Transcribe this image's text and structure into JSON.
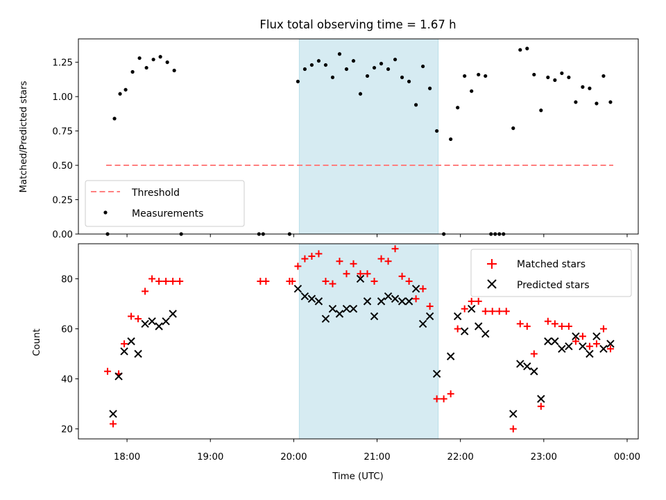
{
  "title": "Flux total observing time = 1.67 h",
  "chart_data": [
    {
      "type": "scatter",
      "ylabel": "Matched/Predicted stars",
      "ylim": [
        0,
        1.42
      ],
      "xlim": [
        "17:25",
        "00:08"
      ],
      "yticks": [
        "0.00",
        "0.25",
        "0.50",
        "0.75",
        "1.00",
        "1.25"
      ],
      "grid": false,
      "legend_position": "lower-left",
      "shaded_span": {
        "start": "20:04",
        "end": "21:44",
        "color": "#add8e6"
      },
      "threshold": {
        "name": "Threshold",
        "value": 0.5,
        "x_start": "17:45",
        "x_end": "23:50",
        "color": "#ff7f7f",
        "style": "dashed"
      },
      "series": [
        {
          "name": "Measurements",
          "color": "#000000",
          "points": [
            [
              "17:46",
              0.0
            ],
            [
              "17:51",
              0.84
            ],
            [
              "17:55",
              1.02
            ],
            [
              "17:59",
              1.05
            ],
            [
              "18:04",
              1.18
            ],
            [
              "18:09",
              1.28
            ],
            [
              "18:14",
              1.21
            ],
            [
              "18:19",
              1.27
            ],
            [
              "18:24",
              1.29
            ],
            [
              "18:29",
              1.25
            ],
            [
              "18:34",
              1.19
            ],
            [
              "18:39",
              0.0
            ],
            [
              "19:35",
              0.0
            ],
            [
              "19:38",
              0.0
            ],
            [
              "19:57",
              0.0
            ],
            [
              "20:03",
              1.11
            ],
            [
              "20:08",
              1.2
            ],
            [
              "20:13",
              1.23
            ],
            [
              "20:18",
              1.26
            ],
            [
              "20:23",
              1.23
            ],
            [
              "20:28",
              1.14
            ],
            [
              "20:33",
              1.31
            ],
            [
              "20:38",
              1.2
            ],
            [
              "20:43",
              1.26
            ],
            [
              "20:48",
              1.02
            ],
            [
              "20:53",
              1.15
            ],
            [
              "20:58",
              1.21
            ],
            [
              "21:03",
              1.24
            ],
            [
              "21:08",
              1.2
            ],
            [
              "21:13",
              1.27
            ],
            [
              "21:18",
              1.14
            ],
            [
              "21:23",
              1.11
            ],
            [
              "21:28",
              0.94
            ],
            [
              "21:33",
              1.22
            ],
            [
              "21:38",
              1.06
            ],
            [
              "21:43",
              0.75
            ],
            [
              "21:48",
              0.0
            ],
            [
              "21:53",
              0.69
            ],
            [
              "21:58",
              0.92
            ],
            [
              "22:03",
              1.15
            ],
            [
              "22:08",
              1.04
            ],
            [
              "22:13",
              1.16
            ],
            [
              "22:18",
              1.15
            ],
            [
              "22:22",
              0.0
            ],
            [
              "22:25",
              0.0
            ],
            [
              "22:28",
              0.0
            ],
            [
              "22:31",
              0.0
            ],
            [
              "22:38",
              0.77
            ],
            [
              "22:43",
              1.34
            ],
            [
              "22:48",
              1.35
            ],
            [
              "22:53",
              1.16
            ],
            [
              "22:58",
              0.9
            ],
            [
              "23:03",
              1.14
            ],
            [
              "23:08",
              1.12
            ],
            [
              "23:13",
              1.17
            ],
            [
              "23:18",
              1.14
            ],
            [
              "23:23",
              0.96
            ],
            [
              "23:28",
              1.07
            ],
            [
              "23:33",
              1.06
            ],
            [
              "23:38",
              0.95
            ],
            [
              "23:43",
              1.15
            ],
            [
              "23:48",
              0.96
            ]
          ]
        }
      ]
    },
    {
      "type": "scatter",
      "xlabel": "Time (UTC)",
      "ylabel": "Count",
      "ylim": [
        16,
        94
      ],
      "xlim": [
        "17:25",
        "00:08"
      ],
      "xticks": [
        "18:00",
        "19:00",
        "20:00",
        "21:00",
        "22:00",
        "23:00",
        "00:00"
      ],
      "yticks": [
        "20",
        "40",
        "60",
        "80"
      ],
      "grid": false,
      "legend_position": "upper-right",
      "shaded_span": {
        "start": "20:04",
        "end": "21:44",
        "color": "#add8e6"
      },
      "series": [
        {
          "name": "Matched stars",
          "color": "#ff0000",
          "marker": "+",
          "points": [
            [
              "17:46",
              43
            ],
            [
              "17:50",
              22
            ],
            [
              "17:54",
              42
            ],
            [
              "17:58",
              54
            ],
            [
              "18:03",
              65
            ],
            [
              "18:08",
              64
            ],
            [
              "18:13",
              75
            ],
            [
              "18:18",
              80
            ],
            [
              "18:23",
              79
            ],
            [
              "18:28",
              79
            ],
            [
              "18:33",
              79
            ],
            [
              "18:38",
              79
            ],
            [
              "19:36",
              79
            ],
            [
              "19:40",
              79
            ],
            [
              "19:57",
              79
            ],
            [
              "19:59",
              79
            ],
            [
              "20:03",
              85
            ],
            [
              "20:08",
              88
            ],
            [
              "20:13",
              89
            ],
            [
              "20:18",
              90
            ],
            [
              "20:23",
              79
            ],
            [
              "20:28",
              78
            ],
            [
              "20:33",
              87
            ],
            [
              "20:38",
              82
            ],
            [
              "20:43",
              86
            ],
            [
              "20:48",
              82
            ],
            [
              "20:53",
              82
            ],
            [
              "20:58",
              79
            ],
            [
              "21:03",
              88
            ],
            [
              "21:08",
              87
            ],
            [
              "21:13",
              92
            ],
            [
              "21:18",
              81
            ],
            [
              "21:23",
              79
            ],
            [
              "21:28",
              72
            ],
            [
              "21:33",
              76
            ],
            [
              "21:38",
              69
            ],
            [
              "21:43",
              32
            ],
            [
              "21:48",
              32
            ],
            [
              "21:53",
              34
            ],
            [
              "21:58",
              60
            ],
            [
              "22:03",
              68
            ],
            [
              "22:08",
              71
            ],
            [
              "22:13",
              71
            ],
            [
              "22:18",
              67
            ],
            [
              "22:23",
              67
            ],
            [
              "22:28",
              67
            ],
            [
              "22:33",
              67
            ],
            [
              "22:38",
              20
            ],
            [
              "22:43",
              62
            ],
            [
              "22:48",
              61
            ],
            [
              "22:53",
              50
            ],
            [
              "22:58",
              29
            ],
            [
              "23:03",
              63
            ],
            [
              "23:08",
              62
            ],
            [
              "23:13",
              61
            ],
            [
              "23:18",
              61
            ],
            [
              "23:23",
              55
            ],
            [
              "23:28",
              57
            ],
            [
              "23:33",
              53
            ],
            [
              "23:38",
              54
            ],
            [
              "23:43",
              60
            ],
            [
              "23:48",
              52
            ]
          ]
        },
        {
          "name": "Predicted stars",
          "color": "#000000",
          "marker": "x",
          "points": [
            [
              "17:50",
              26
            ],
            [
              "17:54",
              41
            ],
            [
              "17:58",
              51
            ],
            [
              "18:03",
              55
            ],
            [
              "18:08",
              50
            ],
            [
              "18:13",
              62
            ],
            [
              "18:18",
              63
            ],
            [
              "18:23",
              61
            ],
            [
              "18:28",
              63
            ],
            [
              "18:33",
              66
            ],
            [
              "20:03",
              76
            ],
            [
              "20:08",
              73
            ],
            [
              "20:13",
              72
            ],
            [
              "20:18",
              71
            ],
            [
              "20:23",
              64
            ],
            [
              "20:28",
              68
            ],
            [
              "20:33",
              66
            ],
            [
              "20:38",
              68
            ],
            [
              "20:43",
              68
            ],
            [
              "20:48",
              80
            ],
            [
              "20:53",
              71
            ],
            [
              "20:58",
              65
            ],
            [
              "21:03",
              71
            ],
            [
              "21:08",
              73
            ],
            [
              "21:13",
              72
            ],
            [
              "21:18",
              71
            ],
            [
              "21:23",
              71
            ],
            [
              "21:28",
              76
            ],
            [
              "21:33",
              62
            ],
            [
              "21:38",
              65
            ],
            [
              "21:43",
              42
            ],
            [
              "21:53",
              49
            ],
            [
              "21:58",
              65
            ],
            [
              "22:03",
              59
            ],
            [
              "22:08",
              68
            ],
            [
              "22:13",
              61
            ],
            [
              "22:18",
              58
            ],
            [
              "22:38",
              26
            ],
            [
              "22:43",
              46
            ],
            [
              "22:48",
              45
            ],
            [
              "22:53",
              43
            ],
            [
              "22:58",
              32
            ],
            [
              "23:03",
              55
            ],
            [
              "23:08",
              55
            ],
            [
              "23:13",
              52
            ],
            [
              "23:18",
              53
            ],
            [
              "23:23",
              57
            ],
            [
              "23:28",
              53
            ],
            [
              "23:33",
              50
            ],
            [
              "23:38",
              57
            ],
            [
              "23:43",
              52
            ],
            [
              "23:48",
              54
            ]
          ]
        }
      ]
    }
  ]
}
